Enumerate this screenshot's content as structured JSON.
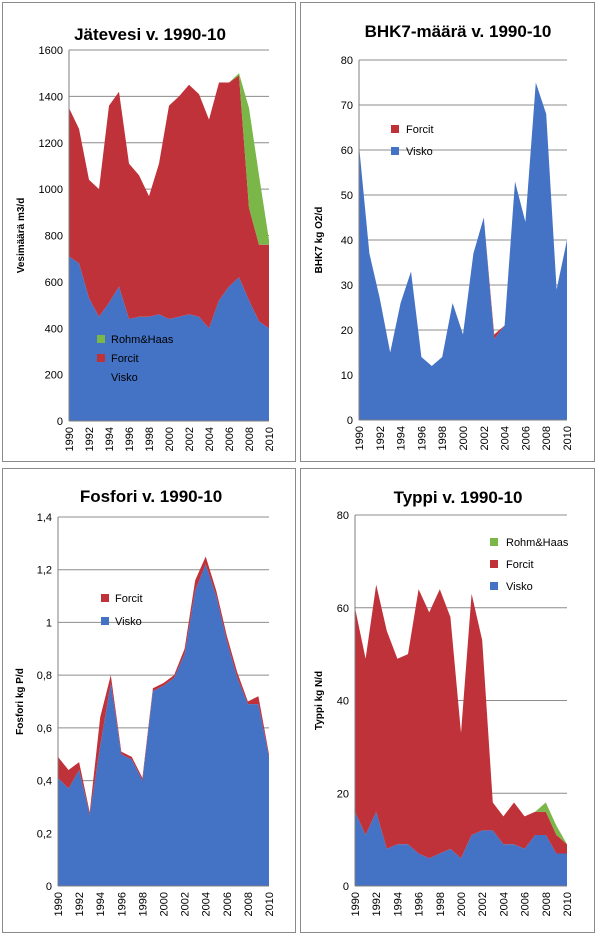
{
  "colors": {
    "Visko": "#4472c4",
    "Forcit": "#c0323a",
    "Rohm&Haas": "#7ab648",
    "grid": "#8c8c8c"
  },
  "chart_data": [
    {
      "type": "area",
      "stacked": true,
      "title": "Jätevesi v. 1990-10",
      "ylabel": "Vesimäärä m3/d",
      "xlabel": "",
      "ylim": [
        0,
        1600
      ],
      "yticks": [
        0,
        200,
        400,
        600,
        800,
        1000,
        1200,
        1400,
        1600
      ],
      "ytick_labels": [
        "0",
        "200",
        "400",
        "600",
        "800",
        "1000",
        "1200",
        "1400",
        "1600"
      ],
      "x": [
        1990,
        1991,
        1992,
        1993,
        1994,
        1995,
        1996,
        1997,
        1998,
        1999,
        2000,
        2001,
        2002,
        2003,
        2004,
        2005,
        2006,
        2007,
        2008,
        2009,
        2010
      ],
      "xtick_labels": [
        "1990",
        "1992",
        "1994",
        "1996",
        "1998",
        "2000",
        "2002",
        "2004",
        "2006",
        "2008",
        "2010"
      ],
      "legend": [
        "Rohm&Haas",
        "Forcit",
        "Visko"
      ],
      "legend_position": "center",
      "grid": true,
      "series": [
        {
          "name": "Visko",
          "values": [
            710,
            680,
            530,
            450,
            510,
            580,
            440,
            450,
            450,
            460,
            440,
            450,
            460,
            450,
            400,
            520,
            580,
            620,
            520,
            430,
            400
          ]
        },
        {
          "name": "Forcit",
          "values": [
            640,
            580,
            510,
            550,
            850,
            840,
            670,
            610,
            520,
            650,
            920,
            950,
            990,
            960,
            900,
            940,
            880,
            870,
            400,
            330,
            360
          ]
        },
        {
          "name": "Rohm&Haas",
          "values": [
            0,
            0,
            0,
            0,
            0,
            0,
            0,
            0,
            0,
            0,
            0,
            0,
            0,
            0,
            0,
            0,
            0,
            10,
            430,
            300,
            20
          ]
        }
      ]
    },
    {
      "type": "area",
      "stacked": true,
      "title": "BHK7-määrä v. 1990-10",
      "ylabel": "BHK7 kg O2/d",
      "xlabel": "",
      "ylim": [
        0,
        80
      ],
      "yticks": [
        0,
        10,
        20,
        30,
        40,
        50,
        60,
        70,
        80
      ],
      "ytick_labels": [
        "0",
        "10",
        "20",
        "30",
        "40",
        "50",
        "60",
        "70",
        "80"
      ],
      "x": [
        1990,
        1991,
        1992,
        1993,
        1994,
        1995,
        1996,
        1997,
        1998,
        1999,
        2000,
        2001,
        2002,
        2003,
        2004,
        2005,
        2006,
        2007,
        2008,
        2009,
        2010
      ],
      "xtick_labels": [
        "1990",
        "1992",
        "1994",
        "1996",
        "1998",
        "2000",
        "2002",
        "2004",
        "2006",
        "2008",
        "2010"
      ],
      "legend": [
        "Forcit",
        "Visko"
      ],
      "legend_position": "top-left",
      "grid": true,
      "series": [
        {
          "name": "Visko",
          "values": [
            61,
            37,
            27,
            15,
            26,
            33,
            14,
            12,
            14,
            26,
            19,
            37,
            45,
            18,
            21,
            53,
            44,
            75,
            68,
            29,
            40
          ]
        },
        {
          "name": "Forcit",
          "values": [
            0,
            0,
            0,
            0,
            0,
            0,
            0,
            0,
            0,
            0,
            0,
            0,
            0,
            1,
            0,
            0,
            0,
            0,
            0,
            0,
            0
          ]
        }
      ]
    },
    {
      "type": "area",
      "stacked": true,
      "title": "Fosfori v. 1990-10",
      "ylabel": "Fosfori kg P/d",
      "xlabel": "",
      "ylim": [
        0,
        1.4
      ],
      "yticks": [
        0,
        0.2,
        0.4,
        0.6,
        0.8,
        1.0,
        1.2,
        1.4
      ],
      "ytick_labels": [
        "0",
        "0,2",
        "0,4",
        "0,6",
        "0,8",
        "1",
        "1,2",
        "1,4"
      ],
      "x": [
        1990,
        1991,
        1992,
        1993,
        1994,
        1995,
        1996,
        1997,
        1998,
        1999,
        2000,
        2001,
        2002,
        2003,
        2004,
        2005,
        2006,
        2007,
        2008,
        2009,
        2010
      ],
      "xtick_labels": [
        "1990",
        "1992",
        "1994",
        "1996",
        "1998",
        "2000",
        "2002",
        "2004",
        "2006",
        "2008",
        "2010"
      ],
      "legend": [
        "Forcit",
        "Visko"
      ],
      "legend_position": "center-left",
      "grid": true,
      "series": [
        {
          "name": "Visko",
          "values": [
            0.41,
            0.37,
            0.44,
            0.27,
            0.53,
            0.77,
            0.5,
            0.48,
            0.4,
            0.74,
            0.76,
            0.79,
            0.88,
            1.12,
            1.22,
            1.1,
            0.93,
            0.79,
            0.69,
            0.69,
            0.49
          ]
        },
        {
          "name": "Forcit",
          "values": [
            0.08,
            0.07,
            0.03,
            0.01,
            0.11,
            0.03,
            0.01,
            0.01,
            0.01,
            0.01,
            0.01,
            0.01,
            0.02,
            0.04,
            0.03,
            0.02,
            0.02,
            0.02,
            0.01,
            0.03,
            0.01
          ]
        }
      ]
    },
    {
      "type": "area",
      "stacked": true,
      "title": "Typpi v. 1990-10",
      "ylabel": "Typpi kg N/d",
      "xlabel": "",
      "ylim": [
        0,
        80
      ],
      "yticks": [
        0,
        20,
        40,
        60,
        80
      ],
      "ytick_labels": [
        "0",
        "20",
        "40",
        "60",
        "80"
      ],
      "x": [
        1990,
        1991,
        1992,
        1993,
        1994,
        1995,
        1996,
        1997,
        1998,
        1999,
        2000,
        2001,
        2002,
        2003,
        2004,
        2005,
        2006,
        2007,
        2008,
        2009,
        2010
      ],
      "xtick_labels": [
        "1990",
        "1992",
        "1994",
        "1996",
        "1998",
        "2000",
        "2002",
        "2004",
        "2006",
        "2008",
        "2010"
      ],
      "legend": [
        "Rohm&Haas",
        "Forcit",
        "Visko"
      ],
      "legend_position": "top-right",
      "grid": true,
      "series": [
        {
          "name": "Visko",
          "values": [
            16,
            11,
            16,
            8,
            9,
            9,
            7,
            6,
            7,
            8,
            6,
            11,
            12,
            12,
            9,
            9,
            8,
            11,
            11,
            7,
            7
          ]
        },
        {
          "name": "Forcit",
          "values": [
            44,
            38,
            49,
            47,
            40,
            41,
            57,
            53,
            57,
            50,
            27,
            52,
            41,
            6,
            6,
            9,
            7,
            5,
            5,
            4,
            2
          ]
        },
        {
          "name": "Rohm&Haas",
          "values": [
            0,
            0,
            0,
            0,
            0,
            0,
            0,
            0,
            0,
            0,
            0,
            0,
            0,
            0,
            0,
            0,
            0,
            0,
            2,
            2,
            0
          ]
        }
      ]
    }
  ]
}
